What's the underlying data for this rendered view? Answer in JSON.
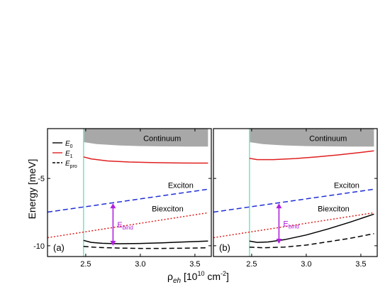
{
  "figure": {
    "ylabel": "Energy [meV]",
    "xlabel_main": "ρ",
    "xlabel_sub": "eh",
    "xlabel_units_pre": " [10",
    "xlabel_units_exp1": "10",
    "xlabel_units_mid": " cm",
    "xlabel_units_exp2": "-2",
    "xlabel_units_post": "]"
  },
  "legend": [
    {
      "symbol": "E",
      "sub": "0",
      "color": "#000000",
      "dash": "solid"
    },
    {
      "symbol": "E",
      "sub": "1",
      "color": "#e02020",
      "dash": "solid"
    },
    {
      "symbol": "E",
      "sub": "pro",
      "color": "#000000",
      "dash": "dashed"
    }
  ],
  "colors": {
    "E0": "#000000",
    "E1": "#e02020",
    "exciton": "#1f2fd6",
    "biexciton": "#e02020",
    "Epro": "#000000",
    "continuum": "#a8a8a8",
    "onset_line": "#7ee8c2",
    "ebind_arrow": "#b020e0"
  },
  "chart_data": [
    {
      "type": "line",
      "panel_label": "(a)",
      "xlim": [
        2.15,
        3.65
      ],
      "ylim": [
        -10.8,
        -1.3
      ],
      "xticks": [
        2.5,
        3.0,
        3.5
      ],
      "xtick_labels": [
        "2.5",
        "3.0",
        "3.5"
      ],
      "yticks": [
        -5,
        -10
      ],
      "ytick_labels": [
        "-5",
        "-10"
      ],
      "onset_x": 2.48,
      "annotations": {
        "continuum": "Continuum",
        "exciton": "Exciton",
        "biexciton": "Biexciton",
        "ebind_main": "E",
        "ebind_sub": "bind"
      },
      "ebind_arrow": {
        "x": 2.75,
        "y_top": -6.85,
        "y_bottom": -10.0
      },
      "continuum_band": {
        "x": [
          2.48,
          2.6,
          2.8,
          3.0,
          3.2,
          3.4,
          3.62
        ],
        "upper": [
          -1.3,
          -1.3,
          -1.3,
          -1.3,
          -1.3,
          -1.3,
          -1.3
        ],
        "lower": [
          -2.3,
          -2.45,
          -2.55,
          -2.6,
          -2.62,
          -2.63,
          -2.63
        ]
      },
      "series": [
        {
          "key": "exciton",
          "dash": "dashed",
          "x": [
            2.15,
            3.62
          ],
          "y": [
            -7.5,
            -5.8
          ]
        },
        {
          "key": "biexciton",
          "dash": "dotted",
          "x": [
            2.15,
            3.62
          ],
          "y": [
            -9.4,
            -7.55
          ]
        },
        {
          "key": "E1",
          "dash": "solid",
          "x": [
            2.48,
            2.55,
            2.7,
            2.9,
            3.1,
            3.3,
            3.5,
            3.62
          ],
          "y": [
            -3.4,
            -3.55,
            -3.7,
            -3.78,
            -3.82,
            -3.85,
            -3.86,
            -3.86
          ]
        },
        {
          "key": "E0",
          "dash": "solid",
          "x": [
            2.48,
            2.55,
            2.65,
            2.8,
            3.0,
            3.2,
            3.4,
            3.62
          ],
          "y": [
            -9.6,
            -9.75,
            -9.82,
            -9.85,
            -9.83,
            -9.78,
            -9.72,
            -9.65
          ]
        },
        {
          "key": "Epro",
          "dash": "dashed",
          "x": [
            2.48,
            2.6,
            2.8,
            3.0,
            3.2,
            3.4,
            3.62
          ],
          "y": [
            -10.05,
            -10.12,
            -10.17,
            -10.2,
            -10.2,
            -10.18,
            -10.15
          ]
        }
      ]
    },
    {
      "type": "line",
      "panel_label": "(b)",
      "xlim": [
        2.15,
        3.65
      ],
      "ylim": [
        -10.8,
        -1.3
      ],
      "xticks": [
        2.5,
        3.0,
        3.5
      ],
      "xtick_labels": [
        "2.5",
        "3.0",
        "3.5"
      ],
      "yticks": [
        -5,
        -10
      ],
      "ytick_labels": [
        "",
        ""
      ],
      "onset_x": 2.48,
      "annotations": {
        "continuum": "Continuum",
        "exciton": "Exciton",
        "biexciton": "Biexciton",
        "ebind_main": "E",
        "ebind_sub": "bind"
      },
      "ebind_arrow": {
        "x": 2.75,
        "y_top": -6.85,
        "y_bottom": -9.85
      },
      "continuum_band": {
        "x": [
          2.48,
          2.6,
          2.8,
          3.0,
          3.2,
          3.4,
          3.62
        ],
        "upper": [
          -1.3,
          -1.3,
          -1.3,
          -1.3,
          -1.3,
          -1.3,
          -1.3
        ],
        "lower": [
          -2.3,
          -2.45,
          -2.55,
          -2.6,
          -2.62,
          -2.63,
          -2.63
        ]
      },
      "series": [
        {
          "key": "exciton",
          "dash": "dashed",
          "x": [
            2.15,
            3.62
          ],
          "y": [
            -7.5,
            -5.8
          ]
        },
        {
          "key": "biexciton",
          "dash": "dotted",
          "x": [
            2.15,
            3.62
          ],
          "y": [
            -9.4,
            -7.55
          ]
        },
        {
          "key": "E1",
          "dash": "solid",
          "x": [
            2.48,
            2.55,
            2.7,
            2.9,
            3.1,
            3.3,
            3.5,
            3.62
          ],
          "y": [
            -3.5,
            -3.6,
            -3.6,
            -3.52,
            -3.4,
            -3.25,
            -3.07,
            -2.95
          ]
        },
        {
          "key": "E0",
          "dash": "solid",
          "x": [
            2.48,
            2.55,
            2.65,
            2.8,
            3.0,
            3.2,
            3.4,
            3.62
          ],
          "y": [
            -9.65,
            -9.75,
            -9.72,
            -9.55,
            -9.2,
            -8.75,
            -8.25,
            -7.65
          ]
        },
        {
          "key": "Epro",
          "dash": "dashed",
          "x": [
            2.48,
            2.6,
            2.8,
            3.0,
            3.2,
            3.4,
            3.62
          ],
          "y": [
            -10.1,
            -10.15,
            -10.1,
            -9.95,
            -9.7,
            -9.45,
            -9.1
          ]
        }
      ]
    }
  ]
}
